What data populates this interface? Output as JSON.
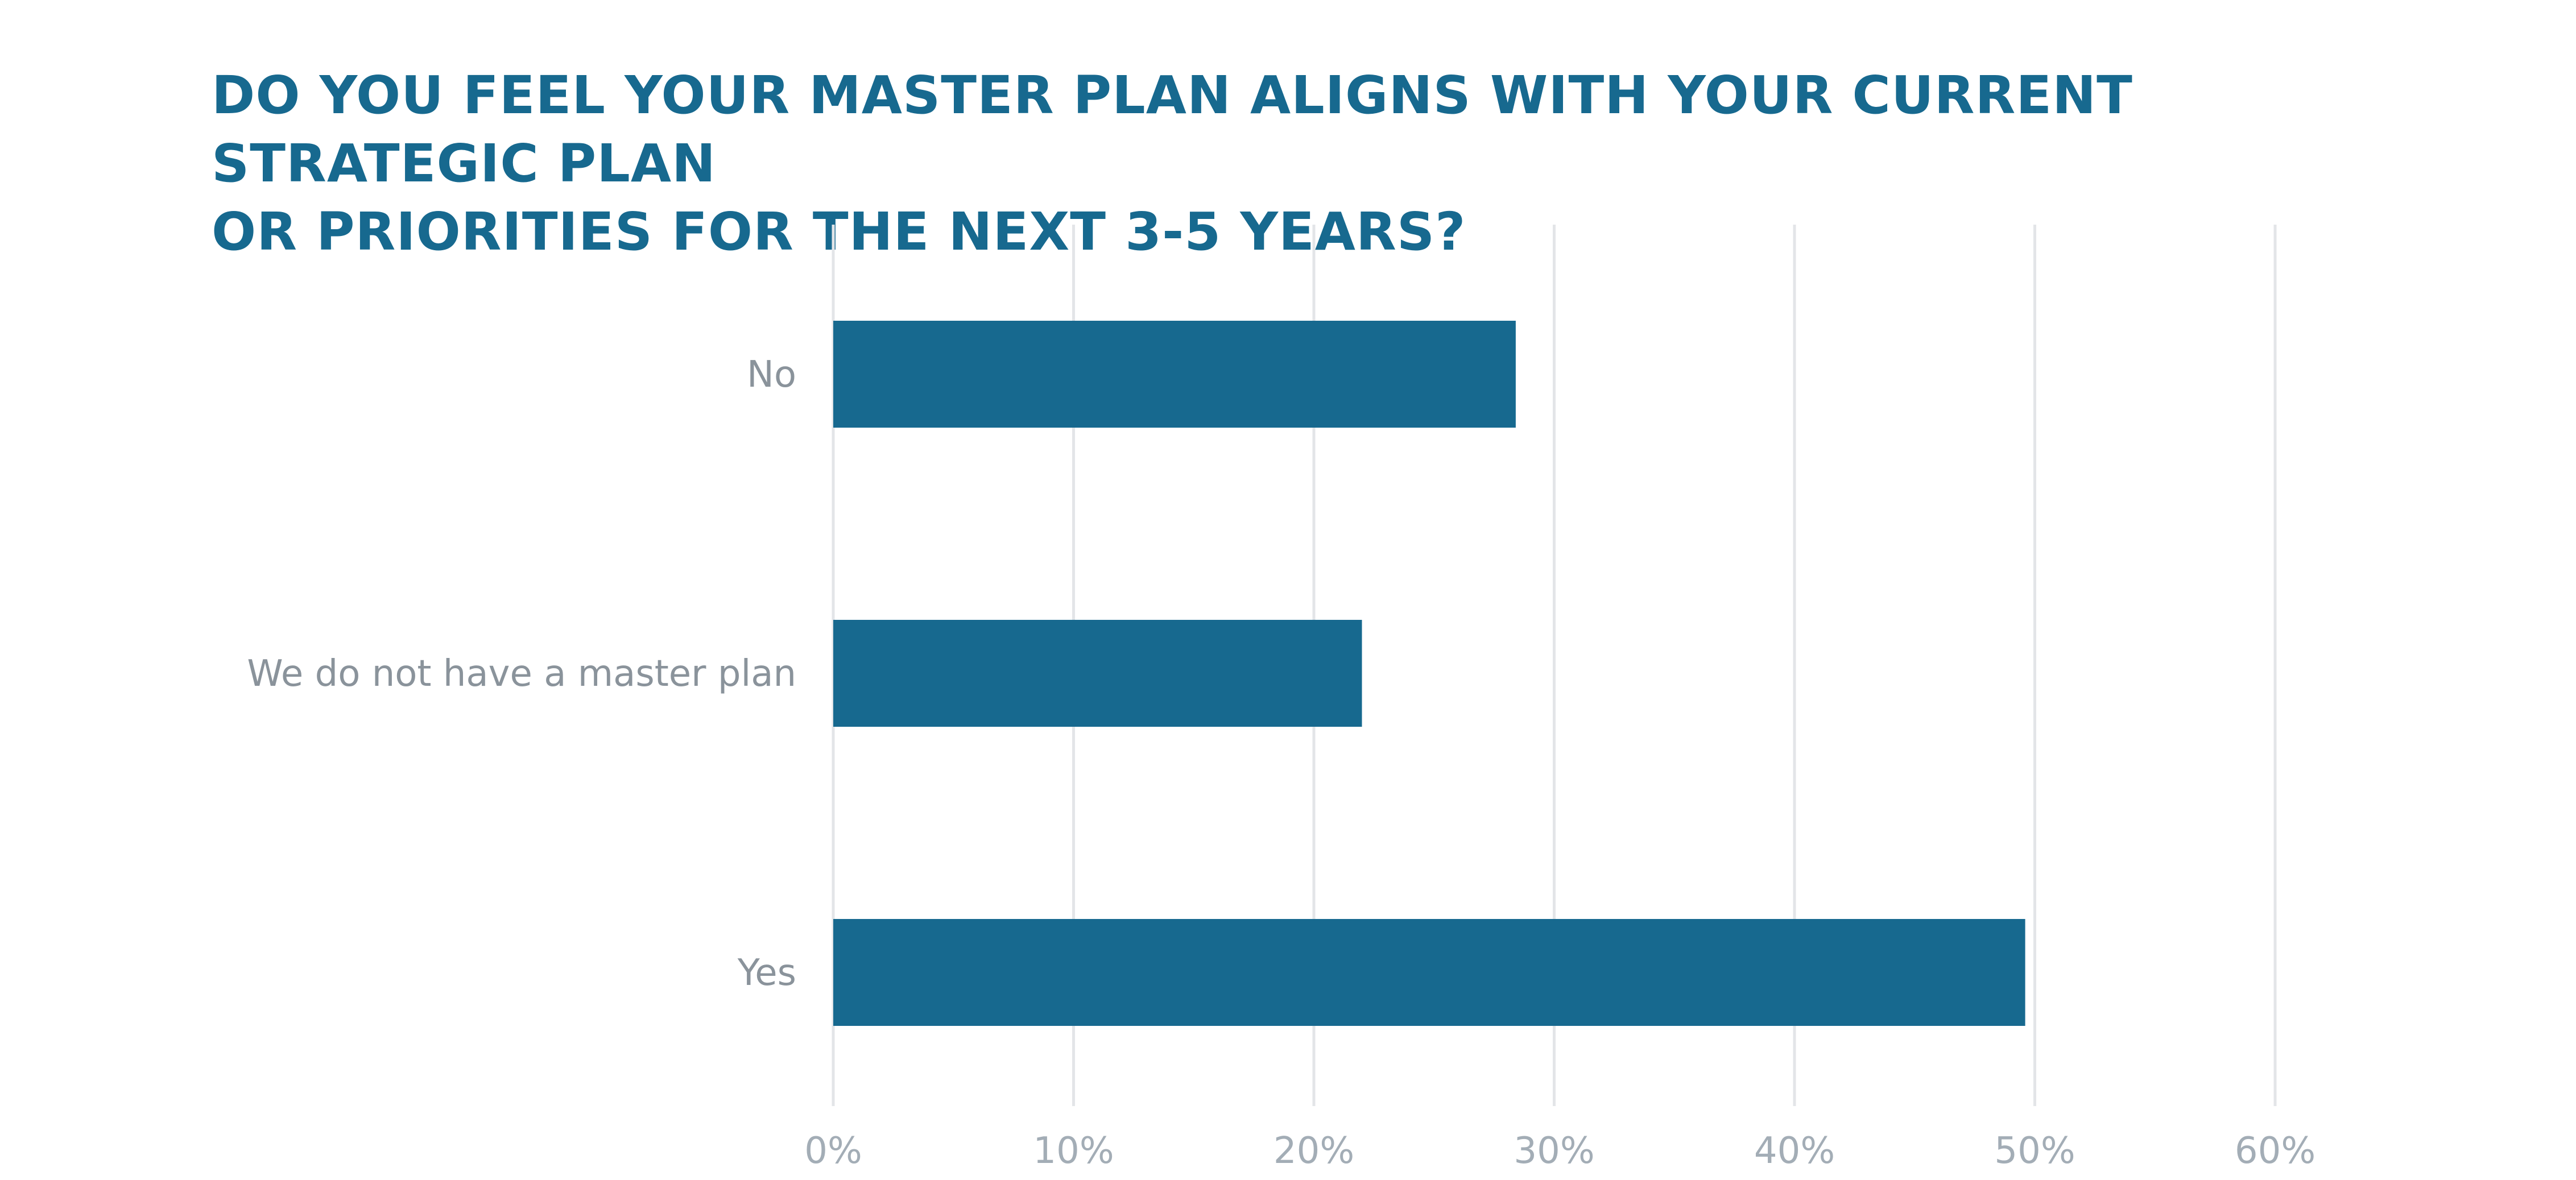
{
  "chart_data": {
    "type": "bar",
    "orientation": "horizontal",
    "title_lines": [
      "DO YOU FEEL YOUR MASTER PLAN ALIGNS WITH YOUR CURRENT STRATEGIC PLAN",
      "OR PRIORITIES FOR THE NEXT 3-5 YEARS?"
    ],
    "categories": [
      "No",
      "We do not have a master plan",
      "Yes"
    ],
    "values": [
      28.4,
      22.0,
      49.6
    ],
    "unit": "%",
    "xlim": [
      0,
      60
    ],
    "x_ticks": [
      0,
      10,
      20,
      30,
      40,
      50,
      60
    ],
    "x_tick_labels": [
      "0%",
      "10%",
      "20%",
      "30%",
      "40%",
      "50%",
      "60%"
    ],
    "grid": "vertical",
    "legend": "none",
    "colors": {
      "bar": "#17698f",
      "title": "#17698f",
      "grid": "#e3e5e8",
      "category_label": "#8a939b",
      "tick_label": "#a3adb6"
    }
  }
}
